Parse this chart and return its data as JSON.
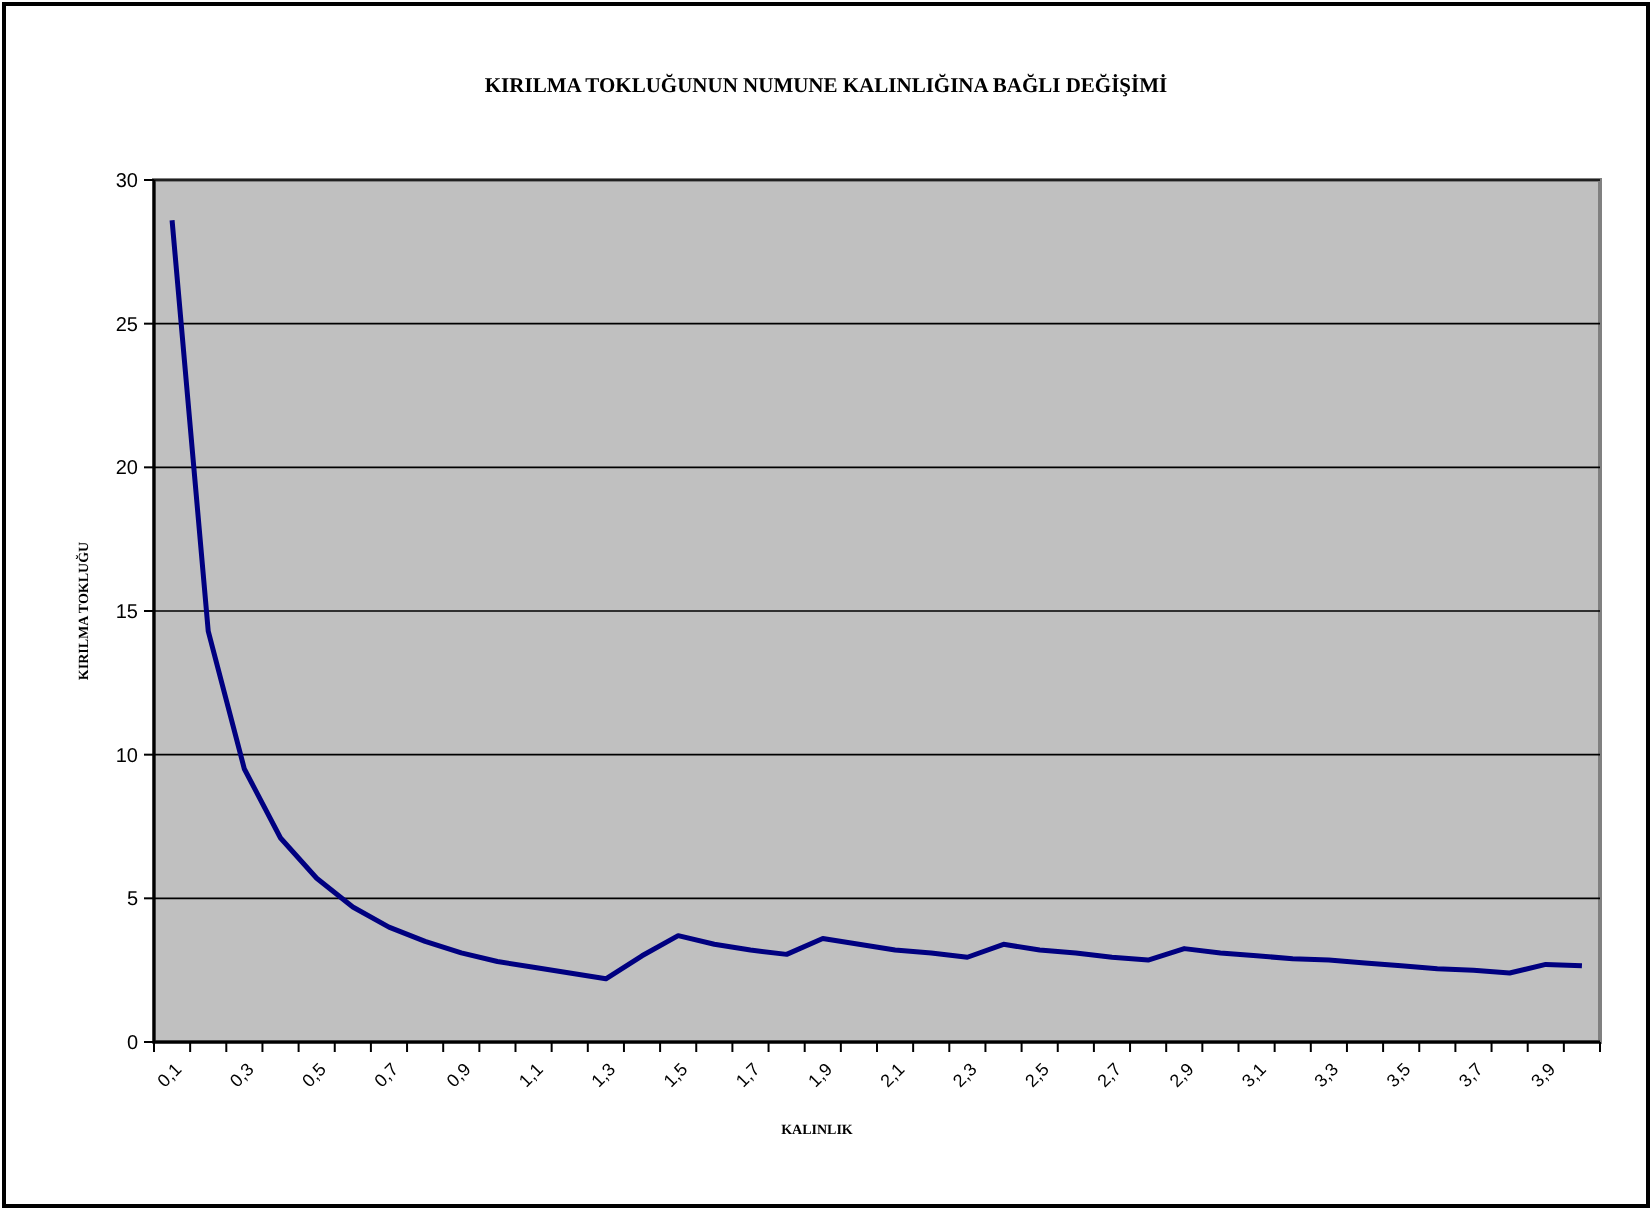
{
  "chart_data": {
    "type": "line",
    "title": "KIRILMA TOKLUĞUNUN NUMUNE KALINLIĞINA BAĞLI DEĞİŞİMİ",
    "xlabel": "KALINLIK",
    "ylabel": "KIRILMA TOKLUĞU",
    "categories": [
      "0,1",
      null,
      "0,3",
      null,
      "0,5",
      null,
      "0,7",
      null,
      "0,9",
      null,
      "1,1",
      null,
      "1,3",
      null,
      "1,5",
      null,
      "1,7",
      null,
      "1,9",
      null,
      "2,1",
      null,
      "2,3",
      null,
      "2,5",
      null,
      "2,7",
      null,
      "2,9",
      null,
      "3,1",
      null,
      "3,3",
      null,
      "3,5",
      null,
      "3,7",
      null,
      "3,9",
      null
    ],
    "series": [
      {
        "color": "#000080",
        "values": [
          28.6,
          14.3,
          9.5,
          7.1,
          5.7,
          4.7,
          4.0,
          3.5,
          3.1,
          2.8,
          2.6,
          2.4,
          2.2,
          3.0,
          3.7,
          3.4,
          3.2,
          3.05,
          3.6,
          3.4,
          3.2,
          3.1,
          2.95,
          3.4,
          3.2,
          3.1,
          2.95,
          2.85,
          3.25,
          3.1,
          3.0,
          2.9,
          2.85,
          2.75,
          2.65,
          2.55,
          2.5,
          2.4,
          2.7,
          2.65
        ]
      }
    ],
    "ylim": [
      0,
      30
    ],
    "yticks": [
      0,
      5,
      10,
      15,
      20,
      25,
      30
    ],
    "grid": "y",
    "marker": "none",
    "line_style": "solid"
  }
}
